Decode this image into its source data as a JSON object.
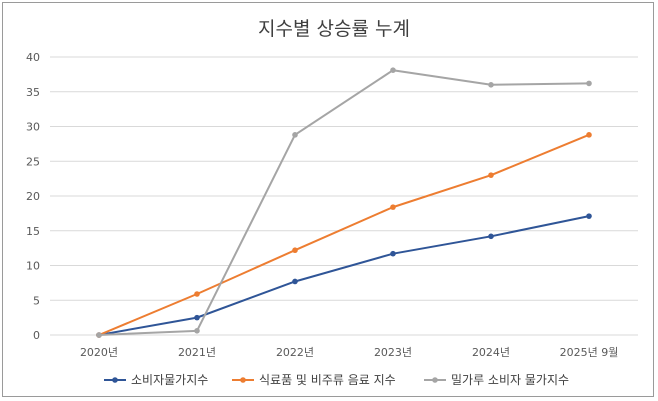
{
  "chart_data": {
    "type": "line",
    "title": "지수별 상승률 누계",
    "xlabel": "",
    "ylabel": "",
    "categories": [
      "2020년",
      "2021년",
      "2022년",
      "2023년",
      "2024년",
      "2025년 9월"
    ],
    "ylim": [
      0,
      40
    ],
    "yticks": [
      0,
      5,
      10,
      15,
      20,
      25,
      30,
      35,
      40
    ],
    "grid": true,
    "legend_position": "bottom",
    "series": [
      {
        "name": "소비자물가지수",
        "color": "#2f5597",
        "values": [
          0,
          2.5,
          7.7,
          11.7,
          14.2,
          17.1
        ]
      },
      {
        "name": "식료품 및 비주류 음료 지수",
        "color": "#ed7d31",
        "values": [
          0,
          5.9,
          12.2,
          18.4,
          23.0,
          28.8
        ]
      },
      {
        "name": "밀가루 소비자 물가지수",
        "color": "#a5a5a5",
        "values": [
          0,
          0.6,
          28.8,
          38.1,
          36.0,
          36.2
        ]
      }
    ]
  }
}
